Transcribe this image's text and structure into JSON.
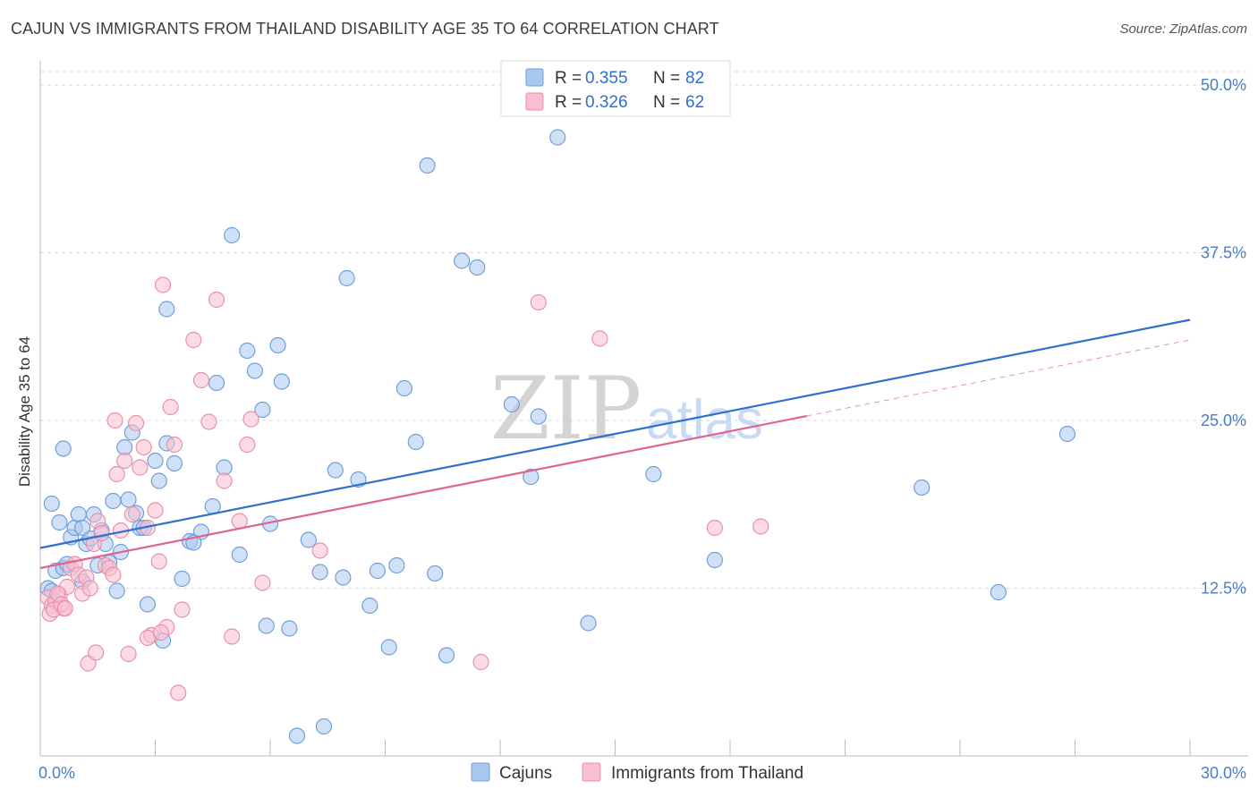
{
  "title": "CAJUN VS IMMIGRANTS FROM THAILAND DISABILITY AGE 35 TO 64 CORRELATION CHART",
  "source": "Source: ZipAtlas.com",
  "watermark": {
    "zip": "ZIP",
    "atlas": "atlas"
  },
  "legend": {
    "rows": [
      {
        "r_label": "R =",
        "r_value": "0.355",
        "n_label": "N =",
        "n_value": "82"
      },
      {
        "r_label": "R =",
        "r_value": "0.326",
        "n_label": "N =",
        "n_value": "62"
      }
    ]
  },
  "bottom_legend": {
    "items": [
      {
        "label": "Cajuns"
      },
      {
        "label": "Immigrants from Thailand"
      }
    ]
  },
  "colors": {
    "cajun_fill": "#a9c8f0",
    "cajun_stroke": "#6f9fd8",
    "cajun_line": "#2f6fd0",
    "thai_fill": "#f7bfd0",
    "thai_stroke": "#ea8fab",
    "thai_line": "#e0648f",
    "grid": "#d9d9d9",
    "axis_label": "#4a7cc9"
  },
  "chart_data": {
    "type": "scatter",
    "title": "CAJUN VS IMMIGRANTS FROM THAILAND DISABILITY AGE 35 TO 64 CORRELATION CHART",
    "xlabel": "",
    "ylabel": "Disability Age 35 to 64",
    "xlim": [
      0,
      30
    ],
    "ylim": [
      0,
      51
    ],
    "x_tick_labels": [
      "0.0%",
      "30.0%"
    ],
    "y_ticks": [
      12.5,
      25.0,
      37.5,
      50.0
    ],
    "y_tick_labels": [
      "12.5%",
      "25.0%",
      "37.5%",
      "50.0%"
    ],
    "grid": "horizontal dashed",
    "legend_position": "top-center",
    "series": [
      {
        "name": "Cajuns",
        "x": [
          0.2,
          0.3,
          0.4,
          0.5,
          0.6,
          0.7,
          0.8,
          0.9,
          1.0,
          1.1,
          1.2,
          1.3,
          1.4,
          1.5,
          1.6,
          1.7,
          1.8,
          1.9,
          2.0,
          2.1,
          2.2,
          2.3,
          2.5,
          2.6,
          2.7,
          2.8,
          3.0,
          3.1,
          3.2,
          3.3,
          3.5,
          3.7,
          3.9,
          4.2,
          4.5,
          4.6,
          4.8,
          5.0,
          5.2,
          5.4,
          5.6,
          5.8,
          6.0,
          6.2,
          6.3,
          6.5,
          6.7,
          7.0,
          7.3,
          7.4,
          7.7,
          7.9,
          8.0,
          8.3,
          8.6,
          9.1,
          9.3,
          9.5,
          9.8,
          10.1,
          10.3,
          10.6,
          11.0,
          11.4,
          12.3,
          13.0,
          13.5,
          14.3,
          16.0,
          17.6,
          23.0,
          25.0,
          26.8,
          0.3,
          0.6,
          1.1,
          2.4,
          3.3,
          4.0,
          5.9,
          8.8,
          12.8
        ],
        "y": [
          12.5,
          12.3,
          13.8,
          17.4,
          14.0,
          14.3,
          16.3,
          17.0,
          18.0,
          13.0,
          15.8,
          16.2,
          18.0,
          14.2,
          16.8,
          15.8,
          14.4,
          19.0,
          12.3,
          15.2,
          23.0,
          19.1,
          18.1,
          17.0,
          17.0,
          11.3,
          22.0,
          20.5,
          8.6,
          33.3,
          21.8,
          13.2,
          16.0,
          16.7,
          18.6,
          27.8,
          21.5,
          38.8,
          15.0,
          30.2,
          28.7,
          25.8,
          17.3,
          30.6,
          27.9,
          9.5,
          1.5,
          16.1,
          13.7,
          2.2,
          21.3,
          13.3,
          35.6,
          20.6,
          11.2,
          8.1,
          14.2,
          27.4,
          23.4,
          44.0,
          13.6,
          7.5,
          36.9,
          36.4,
          26.2,
          25.3,
          46.1,
          9.9,
          21.0,
          14.6,
          20.0,
          12.2,
          24.0,
          18.8,
          22.9,
          17.0,
          24.1,
          23.3,
          15.9,
          9.7,
          13.8,
          20.8
        ],
        "trend": {
          "x": [
            0,
            30
          ],
          "y": [
            15.5,
            32.5
          ]
        }
      },
      {
        "name": "Immigrants from Thailand",
        "x": [
          0.2,
          0.3,
          0.4,
          0.5,
          0.6,
          0.7,
          0.8,
          0.9,
          1.0,
          1.1,
          1.2,
          1.3,
          1.4,
          1.5,
          1.6,
          1.7,
          1.8,
          1.9,
          2.0,
          2.1,
          2.2,
          2.3,
          2.4,
          2.5,
          2.6,
          2.7,
          2.8,
          2.9,
          3.0,
          3.1,
          3.2,
          3.3,
          3.4,
          3.5,
          3.6,
          3.7,
          4.0,
          4.2,
          4.4,
          4.6,
          4.8,
          5.0,
          5.2,
          5.4,
          5.5,
          5.8,
          7.3,
          11.5,
          13.0,
          14.6,
          17.6,
          18.8,
          0.25,
          0.35,
          0.45,
          0.55,
          0.65,
          1.25,
          1.45,
          1.95,
          2.8,
          3.15
        ],
        "y": [
          11.8,
          11.2,
          11.5,
          12.0,
          11.0,
          12.6,
          14.0,
          14.3,
          13.5,
          12.1,
          13.3,
          12.5,
          15.8,
          17.5,
          16.6,
          14.2,
          14.0,
          13.5,
          21.0,
          16.8,
          22.0,
          7.6,
          18.0,
          24.8,
          21.5,
          23.0,
          17.0,
          9.0,
          18.3,
          14.5,
          35.1,
          9.6,
          26.0,
          23.2,
          4.7,
          10.9,
          31.0,
          28.0,
          24.9,
          34.0,
          20.5,
          8.9,
          17.5,
          23.2,
          25.1,
          12.9,
          15.3,
          7.0,
          33.8,
          31.1,
          17.0,
          17.1,
          10.6,
          10.9,
          12.1,
          11.3,
          11.0,
          6.9,
          7.7,
          25.0,
          8.8,
          9.2
        ],
        "trend": {
          "x": [
            0,
            30
          ],
          "y": [
            14.0,
            31.0
          ],
          "solid_until_x": 20
        }
      }
    ]
  }
}
